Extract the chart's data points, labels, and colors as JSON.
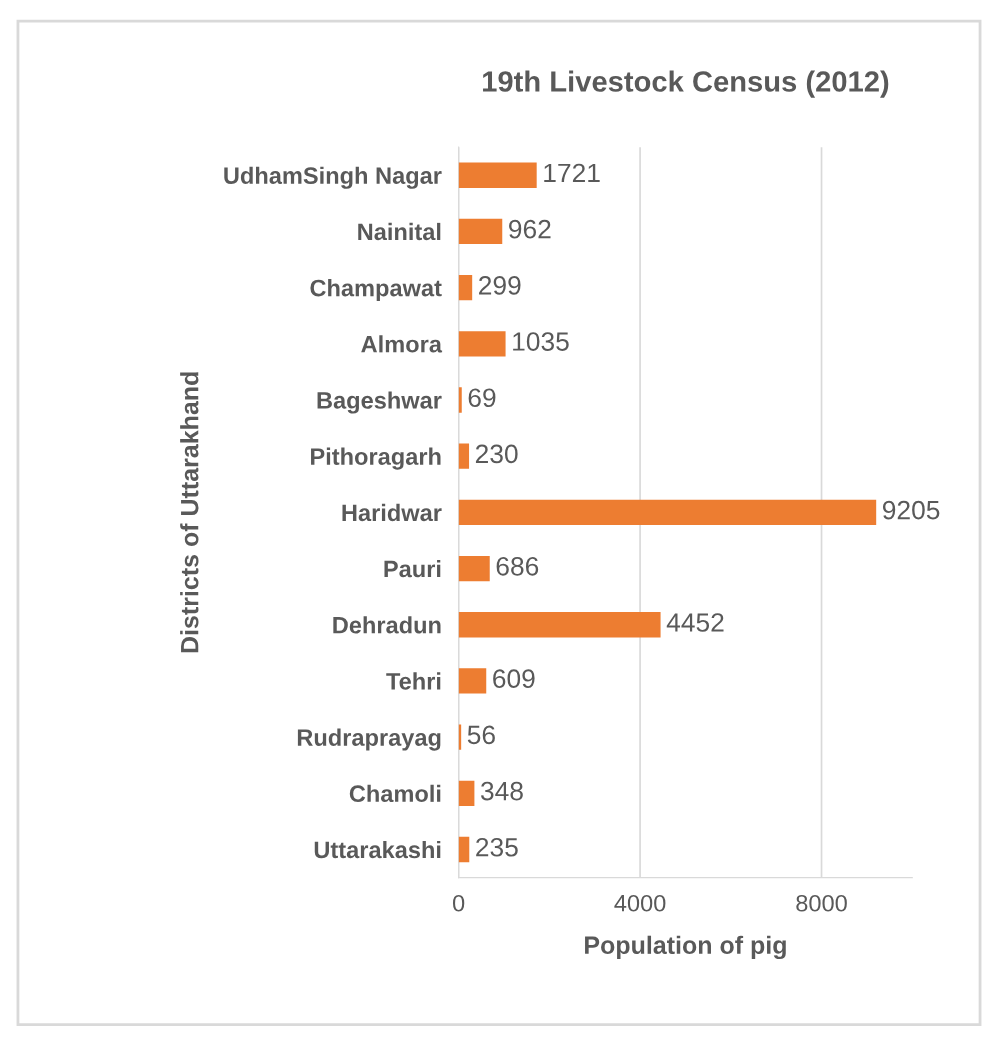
{
  "chart_data": {
    "type": "bar",
    "orientation": "horizontal",
    "title": "19th Livestock Census (2012)",
    "xlabel": "Population of pig",
    "ylabel": "Districts of Uttarakhand",
    "categories": [
      "UdhamSingh Nagar",
      "Nainital",
      "Champawat",
      "Almora",
      "Bageshwar",
      "Pithoragarh",
      "Haridwar",
      "Pauri",
      "Dehradun",
      "Tehri",
      "Rudraprayag",
      "Chamoli",
      "Uttarakashi"
    ],
    "values": [
      1721,
      962,
      299,
      1035,
      69,
      230,
      9205,
      686,
      4452,
      609,
      56,
      348,
      235
    ],
    "color": "#ed7d31",
    "xlim": [
      0,
      10000
    ],
    "xticks": [
      0,
      4000,
      8000
    ],
    "grid": "x",
    "data_labels": true
  }
}
